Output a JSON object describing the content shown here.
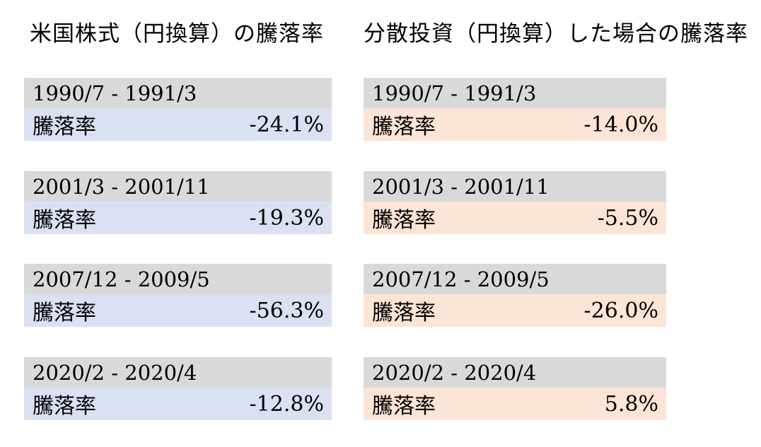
{
  "colors": {
    "page_bg": "#ffffff",
    "header_row_bg": "#d9d9d9",
    "us_stocks_row_bg": "#d9e1f2",
    "diversified_row_bg": "#fce4d6",
    "text": "#000000"
  },
  "chart_data": {
    "type": "table",
    "tables": [
      {
        "title": "米国株式（円換算）の騰落率",
        "metric_label": "騰落率",
        "rows": [
          {
            "period": "1990/7 - 1991/3",
            "value": "-24.1%",
            "value_numeric": -24.1
          },
          {
            "period": "2001/3 - 2001/11",
            "value": "-19.3%",
            "value_numeric": -19.3
          },
          {
            "period": "2007/12 - 2009/5",
            "value": "-56.3%",
            "value_numeric": -56.3
          },
          {
            "period": "2020/2 - 2020/4",
            "value": "-12.8%",
            "value_numeric": -12.8
          }
        ]
      },
      {
        "title": "分散投資（円換算）した場合の騰落率",
        "metric_label": "騰落率",
        "rows": [
          {
            "period": "1990/7 - 1991/3",
            "value": "-14.0%",
            "value_numeric": -14.0
          },
          {
            "period": "2001/3 - 2001/11",
            "value": "-5.5%",
            "value_numeric": -5.5
          },
          {
            "period": "2007/12 - 2009/5",
            "value": "-26.0%",
            "value_numeric": -26.0
          },
          {
            "period": "2020/2 - 2020/4",
            "value": "5.8%",
            "value_numeric": 5.8
          }
        ]
      }
    ]
  }
}
